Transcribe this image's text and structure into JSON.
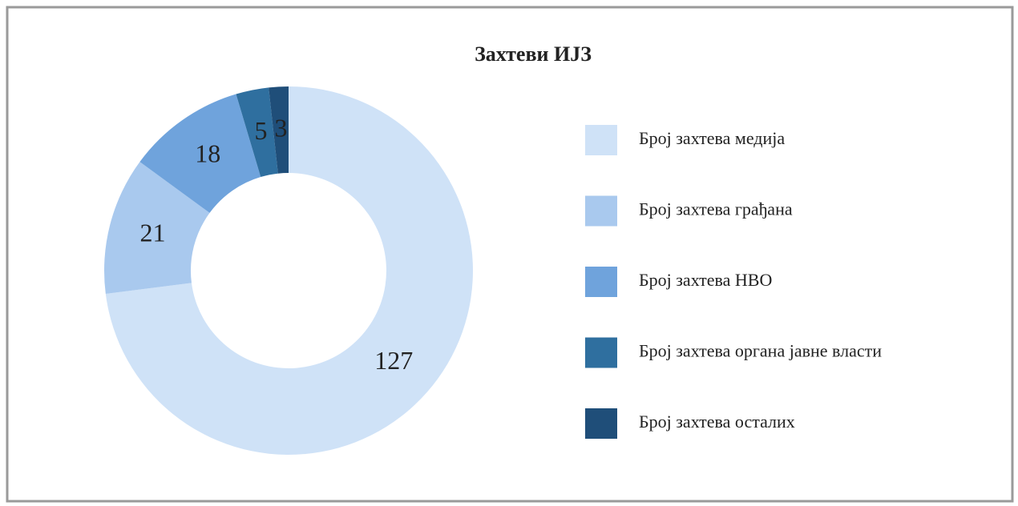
{
  "chart_data": {
    "type": "pie",
    "title": "Захтеви ИЈЗ",
    "categories": [
      "Број захтева медија",
      "Број захтева грађана",
      "Број захтева НВО",
      "Број захтева органа јавне власти",
      "Број захтева осталих"
    ],
    "values": [
      127,
      21,
      18,
      5,
      3
    ],
    "colors": [
      "#cfe2f7",
      "#a9c9ee",
      "#6fa3dc",
      "#2f6f9f",
      "#1f4e79"
    ],
    "legend": "right"
  }
}
